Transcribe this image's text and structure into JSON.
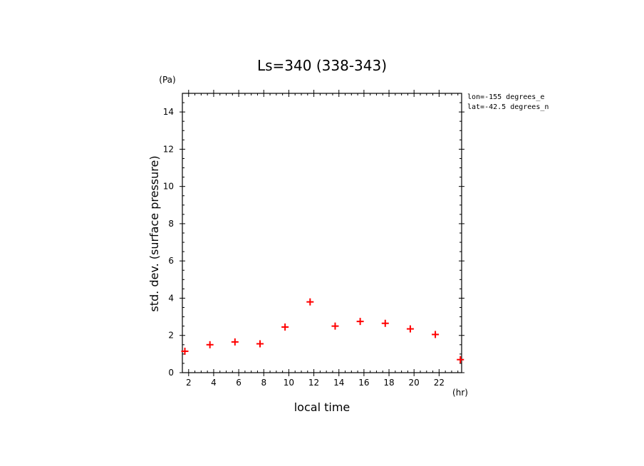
{
  "chart_data": {
    "type": "scatter",
    "title": "Ls=340 (338-343)",
    "xlabel": "local time",
    "xunit": "(hr)",
    "ylabel": "std. dev. (surface pressure)",
    "yunit": "(Pa)",
    "xlim": [
      1.5,
      23.8
    ],
    "ylim": [
      0,
      15
    ],
    "xticks": [
      2,
      4,
      6,
      8,
      10,
      12,
      14,
      16,
      18,
      20,
      22
    ],
    "yticks": [
      0,
      2,
      4,
      6,
      8,
      10,
      12,
      14
    ],
    "annotations": [
      "lon=-155 degrees_e",
      "lat=-42.5 degrees_n"
    ],
    "marker_color": "#ff0000",
    "series": [
      {
        "x": [
          1.7,
          3.7,
          5.7,
          7.7,
          9.7,
          11.7,
          13.7,
          15.7,
          17.7,
          19.7,
          21.7,
          23.7
        ],
        "y": [
          1.15,
          1.5,
          1.65,
          1.55,
          2.45,
          3.8,
          2.5,
          2.75,
          2.65,
          2.35,
          2.05,
          0.7
        ]
      }
    ]
  }
}
